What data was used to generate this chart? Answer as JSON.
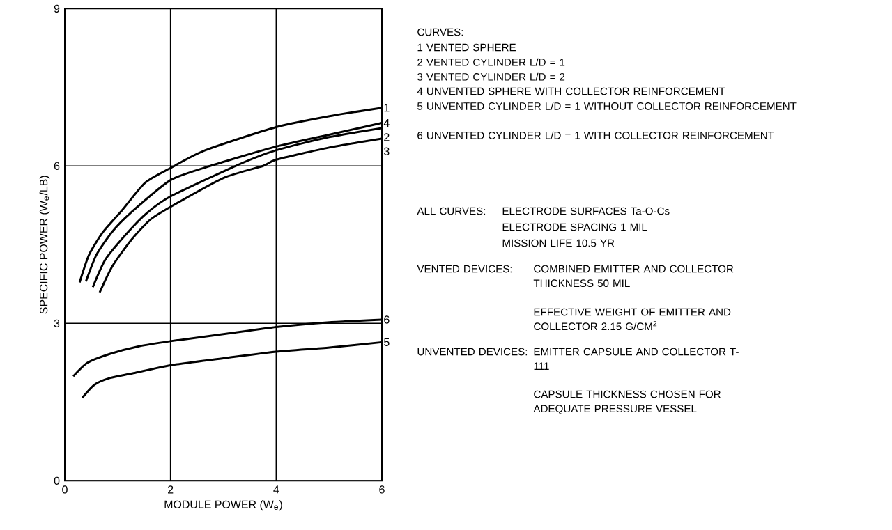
{
  "chart_data": {
    "type": "line",
    "xlabel": "MODULE POWER (W$_{e}$)",
    "ylabel": "SPECIFIC POWER (W$_{e}$/LB)",
    "xlim": [
      0,
      6
    ],
    "ylim": [
      0,
      9
    ],
    "xticks": [
      0,
      2,
      4,
      6
    ],
    "yticks": [
      0,
      3,
      6,
      9
    ],
    "grid": true,
    "series": [
      {
        "name": "1",
        "color": "#000000",
        "x": [
          0.28,
          0.46,
          0.73,
          1.08,
          1.52,
          2.0,
          2.66,
          4.0,
          5.07,
          6.0
        ],
        "values": [
          3.78,
          4.31,
          4.75,
          5.15,
          5.68,
          5.96,
          6.3,
          6.74,
          6.96,
          7.11
        ]
      },
      {
        "name": "2",
        "color": "#000000",
        "x": [
          0.53,
          0.77,
          1.17,
          1.56,
          2.0,
          3.23,
          4.0,
          5.0,
          6.0
        ],
        "values": [
          3.69,
          4.22,
          4.71,
          5.11,
          5.42,
          6.0,
          6.3,
          6.55,
          6.72
        ]
      },
      {
        "name": "3",
        "color": "#000000",
        "x": [
          0.66,
          0.9,
          1.25,
          1.61,
          2.0,
          3.0,
          3.75,
          4.0,
          5.0,
          6.0
        ],
        "values": [
          3.59,
          4.09,
          4.58,
          4.97,
          5.22,
          5.77,
          6.0,
          6.12,
          6.35,
          6.52
        ]
      },
      {
        "name": "4",
        "color": "#000000",
        "x": [
          0.4,
          0.6,
          0.9,
          1.25,
          2.0,
          2.75,
          4.0,
          5.07,
          6.0
        ],
        "values": [
          3.8,
          4.31,
          4.75,
          5.11,
          5.73,
          6.0,
          6.37,
          6.61,
          6.82
        ]
      },
      {
        "name": "5",
        "color": "#000000",
        "x": [
          0.33,
          0.56,
          0.86,
          1.3,
          2.0,
          3.05,
          4.0,
          5.01,
          6.0
        ],
        "values": [
          1.58,
          1.83,
          1.96,
          2.05,
          2.2,
          2.34,
          2.46,
          2.54,
          2.64
        ]
      },
      {
        "name": "6",
        "color": "#000000",
        "x": [
          0.16,
          0.43,
          0.86,
          1.39,
          2.0,
          3.05,
          4.0,
          5.01,
          6.0
        ],
        "values": [
          1.99,
          2.25,
          2.42,
          2.56,
          2.66,
          2.8,
          2.93,
          3.02,
          3.07
        ]
      }
    ],
    "annotations": [
      "CURVES:",
      "1 VENTED SPHERE",
      "2 VENTED CYLINDER L/D = 1",
      "3 VENTED CYLINDER L/D = 2",
      "4 UNVENTED SPHERE WITH COLLECTOR REINFORCEMENT",
      "5 UNVENTED CYLINDER L/D = 1 WITHOUT COLLECTOR REINFORCEMENT",
      "6 UNVENTED CYLINDER L/D = 1 WITH COLLECTOR REINFORCEMENT",
      "ALL CURVES:",
      "ELECTRODE SURFACES Ta-O-Cs",
      "ELECTRODE SPACING 1 MIL",
      "MISSION LIFE 10.5 YR",
      "VENTED DEVICES:",
      "COMBINED EMITTER AND COLLECTOR THICKNESS 50 MIL",
      "EFFECTIVE WEIGHT OF EMITTER AND COLLECTOR 2.15 G/CM$^{2}$",
      "UNVENTED DEVICES:",
      "EMITTER CAPSULE AND COLLECTOR T-111",
      "CAPSULE THICKNESS CHOSEN FOR ADEQUATE PRESSURE VESSEL"
    ]
  }
}
